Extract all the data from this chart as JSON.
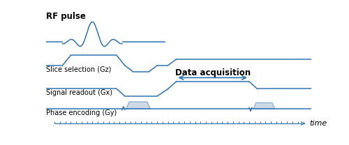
{
  "line_color": "#2E74B5",
  "bg_color": "#ffffff",
  "labels": [
    "RF pulse",
    "Slice selection (Gz)",
    "Signal readout (Gx)",
    "Phase encoding (Gy)"
  ],
  "data_acq_text": "Data acquisition",
  "time_label": "time",
  "arrow_color": "#2E74B5",
  "phase_blob_color": "#A8B8D0",
  "phase_blob_alpha": 0.55,
  "tick_color": "#2E74B5",
  "rf_label_fontsize": 8.5,
  "row_label_fontsize": 7.0,
  "data_acq_fontsize": 8.5
}
